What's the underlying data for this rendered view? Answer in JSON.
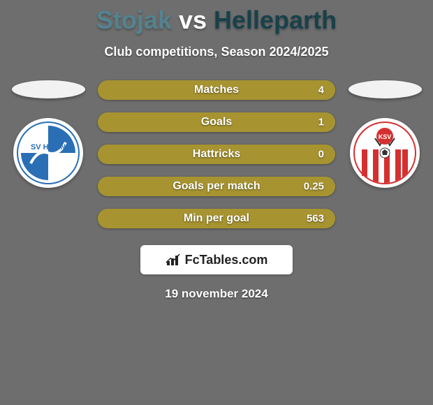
{
  "background_color": "#6e6e6e",
  "title": {
    "text_player1": "Stojak",
    "text_vs": "vs",
    "text_player2": "Helleparth",
    "color_player1": "#53838f",
    "color_vs": "#ffffff",
    "color_player2": "#18414a"
  },
  "subtitle": "Club competitions, Season 2024/2025",
  "pill_fill_color": "#a79430",
  "pill_bg_color": "#7e7a52",
  "stats": [
    {
      "label": "Matches",
      "right_value": "4",
      "fill_pct": 100
    },
    {
      "label": "Goals",
      "right_value": "1",
      "fill_pct": 100
    },
    {
      "label": "Hattricks",
      "right_value": "0",
      "fill_pct": 100
    },
    {
      "label": "Goals per match",
      "right_value": "0.25",
      "fill_pct": 100
    },
    {
      "label": "Min per goal",
      "right_value": "563",
      "fill_pct": 100
    }
  ],
  "club_left": {
    "name": "sv-horn",
    "bg_color": "#ffffff",
    "svg_primary": "#2a6fb5",
    "label_text": "SV HORN"
  },
  "club_right": {
    "name": "ksv",
    "bg_color": "#ffffff",
    "svg_red": "#d43030",
    "label_text": "KSV"
  },
  "footer": {
    "brand": "FcTables.com"
  },
  "date": "19 november 2024"
}
